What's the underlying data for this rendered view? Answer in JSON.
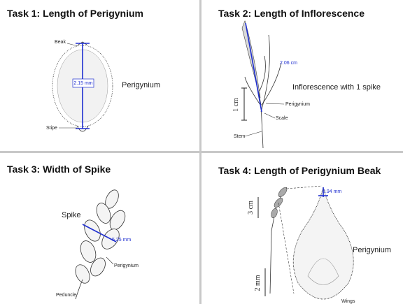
{
  "panels": [
    {
      "title": "Task 1: Length of Perigynium",
      "labels": [
        "Beak",
        "2.15 mm",
        "Perigynium",
        "Stipe"
      ]
    },
    {
      "title": "Task 2: Length of Inflorescence",
      "labels": [
        "2.06 cm",
        "Inflorescence with 1 spike",
        "1 cm",
        "Perigynium",
        "Scale",
        "Stem"
      ]
    },
    {
      "title": "Task 3: Width of Spike",
      "labels": [
        "Spike",
        "5.25 mm",
        "Perigynium",
        "Peduncle"
      ]
    },
    {
      "title": "Task 4: Length of Perigynium Beak",
      "labels": [
        "0.94 mm",
        "3 cm",
        "Perigynium",
        "2 mm",
        "Wings"
      ]
    }
  ]
}
